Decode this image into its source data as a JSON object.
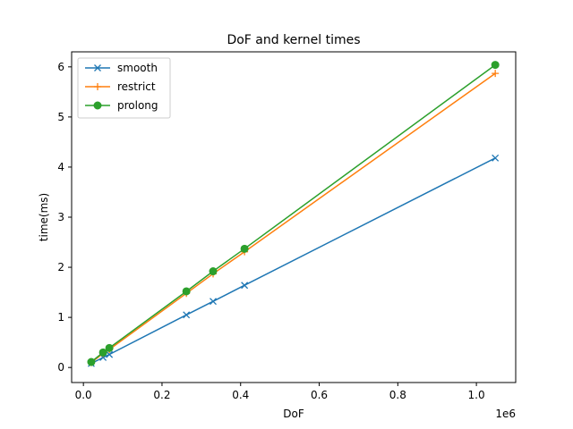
{
  "chart_data": {
    "type": "line",
    "title": "DoF and kernel times",
    "xlabel": "DoF",
    "ylabel": "time(ms)",
    "x_offset_label": "1e6",
    "xlim": [
      -30000,
      1100000
    ],
    "ylim": [
      -0.3,
      6.3
    ],
    "x_ticks": [
      0,
      200000,
      400000,
      600000,
      800000,
      1000000
    ],
    "x_tick_labels": [
      "0.0",
      "0.2",
      "0.4",
      "0.6",
      "0.8",
      "1.0"
    ],
    "y_ticks": [
      0,
      1,
      2,
      3,
      4,
      5,
      6
    ],
    "y_tick_labels": [
      "0",
      "1",
      "2",
      "3",
      "4",
      "5",
      "6"
    ],
    "grid": false,
    "legend_position": "upper-left",
    "x": [
      20000,
      50000,
      66000,
      262000,
      330000,
      410000,
      1048000
    ],
    "series": [
      {
        "name": "smooth",
        "color": "#1f77b4",
        "marker": "x",
        "values": [
          0.08,
          0.2,
          0.26,
          1.05,
          1.32,
          1.64,
          4.18
        ]
      },
      {
        "name": "restrict",
        "color": "#ff7f0e",
        "marker": "plus",
        "values": [
          0.1,
          0.28,
          0.36,
          1.48,
          1.87,
          2.31,
          5.87
        ]
      },
      {
        "name": "prolong",
        "color": "#2ca02c",
        "marker": "circle",
        "values": [
          0.11,
          0.3,
          0.39,
          1.52,
          1.92,
          2.37,
          6.04
        ]
      }
    ]
  }
}
